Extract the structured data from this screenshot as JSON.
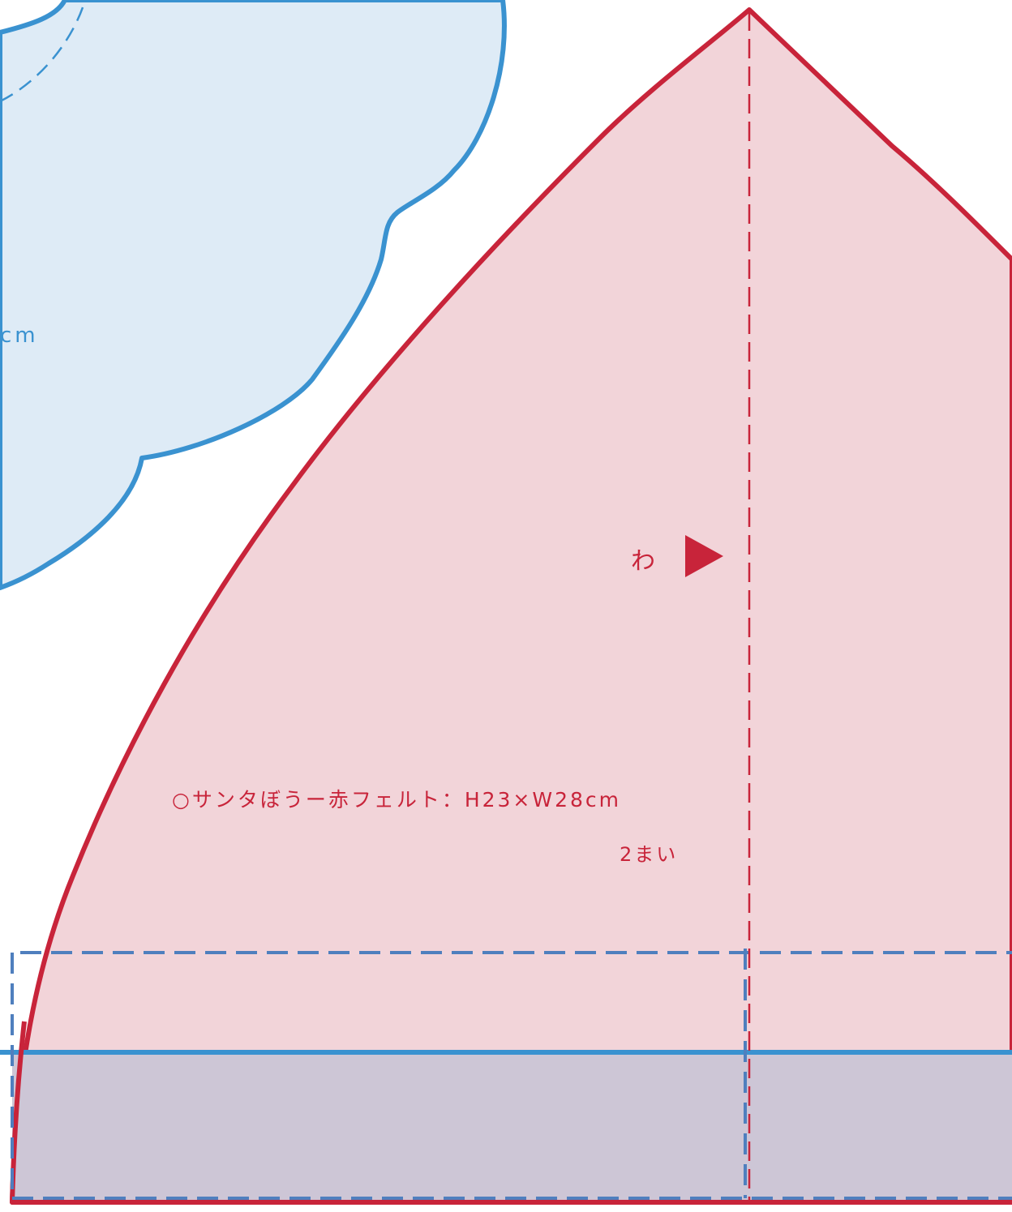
{
  "colors": {
    "background": "#ffffff",
    "hat_fill": "#f2d4d9",
    "hat_stroke": "#c8243a",
    "cloud_fill": "#deebf6",
    "cloud_stroke": "#3a92d0",
    "band_fill": "#cdc6d6",
    "band_stroke": "#3a92d0",
    "band_dash": "#4f7fbe",
    "text_red": "#c8243a",
    "text_blue": "#3a92d0"
  },
  "cloud_piece": {
    "label_fragment": "cm"
  },
  "hat_piece": {
    "fold_label": "わ",
    "fold_marker_icon": "triangle-right-icon",
    "title": "○サンタぼうー赤フェルト：H23×W28cm",
    "count": "2まい"
  }
}
